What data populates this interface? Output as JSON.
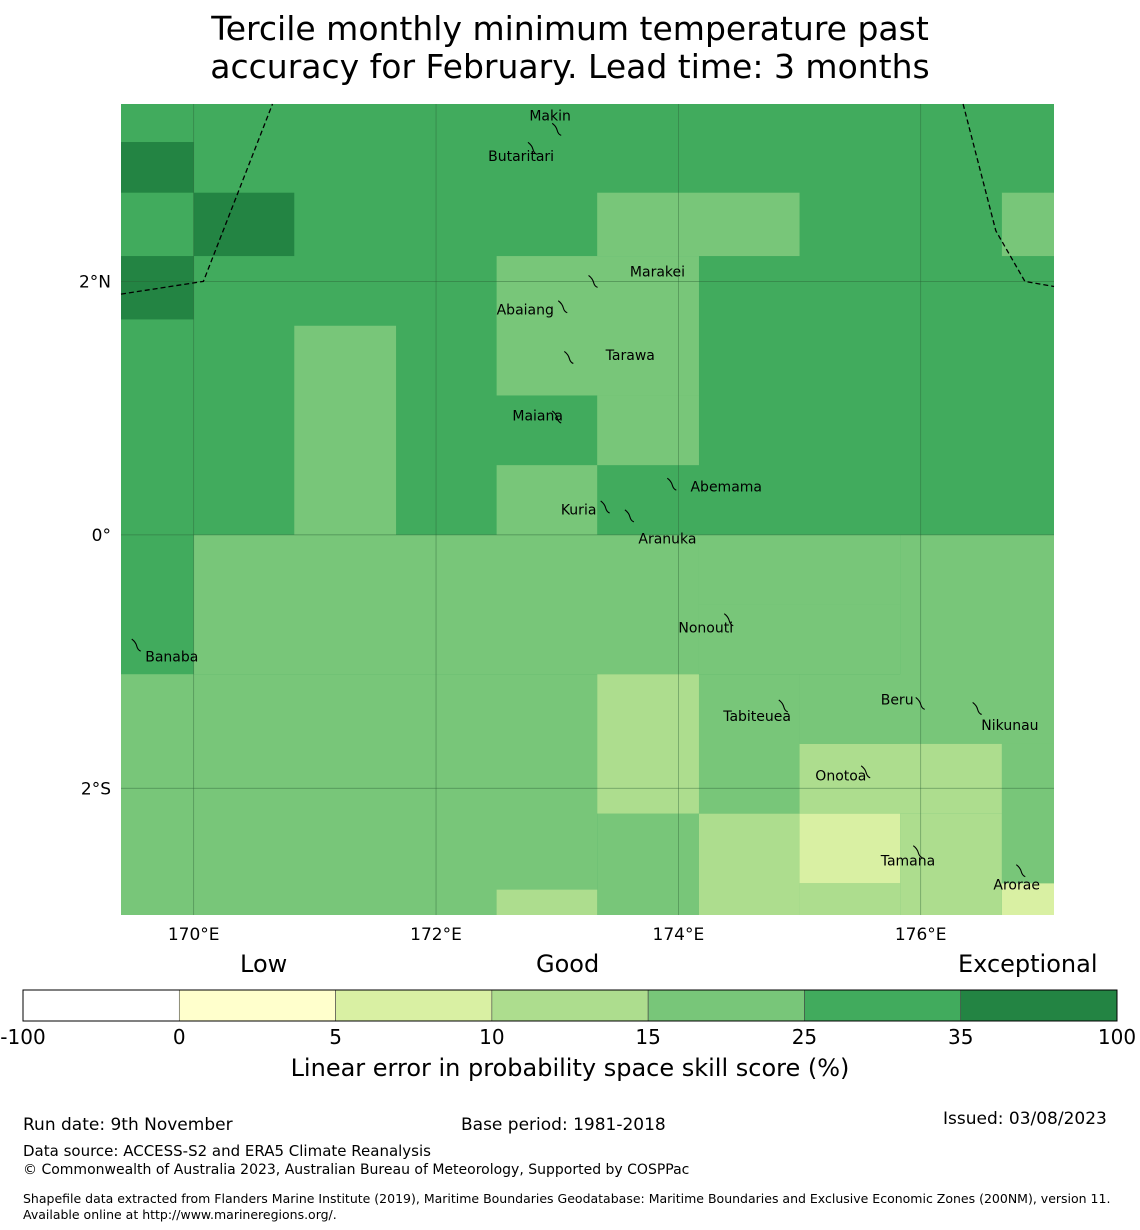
{
  "title": {
    "line1": "Tercile monthly minimum temperature past",
    "line2": "accuracy for February. Lead time: 3 months"
  },
  "map": {
    "lon_range": [
      169.4,
      177.1
    ],
    "lat_range": [
      -3.0,
      3.4
    ],
    "lon_ticks": [
      {
        "value": 170,
        "label": "170°E"
      },
      {
        "value": 172,
        "label": "172°E"
      },
      {
        "value": 174,
        "label": "174°E"
      },
      {
        "value": 176,
        "label": "176°E"
      }
    ],
    "lat_ticks": [
      {
        "value": 2,
        "label": "2°N"
      },
      {
        "value": 0,
        "label": "0°"
      },
      {
        "value": -2,
        "label": "2°S"
      }
    ],
    "colors": {
      "c15_25": "#78c679",
      "c25_35": "#41ab5d",
      "c35_100": "#238443",
      "c10_15": "#addd8e",
      "c5_10": "#d9f0a3",
      "c0_5": "#ffffcc"
    },
    "background_class": "c25_35",
    "cells": [
      {
        "lon": [
          169.4,
          170.0
        ],
        "lat": [
          2.7,
          3.1
        ],
        "cls": "c35_100"
      },
      {
        "lon": [
          170.0,
          170.83
        ],
        "lat": [
          2.2,
          2.7
        ],
        "cls": "c35_100"
      },
      {
        "lon": [
          169.4,
          170.0
        ],
        "lat": [
          1.7,
          2.2
        ],
        "cls": "c35_100"
      },
      {
        "lon": [
          173.33,
          175.0
        ],
        "lat": [
          2.2,
          2.7
        ],
        "cls": "c15_25"
      },
      {
        "lon": [
          176.67,
          177.1
        ],
        "lat": [
          2.2,
          2.7
        ],
        "cls": "c15_25"
      },
      {
        "lon": [
          172.5,
          174.17
        ],
        "lat": [
          1.1,
          2.2
        ],
        "cls": "c15_25"
      },
      {
        "lon": [
          173.33,
          174.17
        ],
        "lat": [
          0.55,
          1.1
        ],
        "cls": "c15_25"
      },
      {
        "lon": [
          170.83,
          171.67
        ],
        "lat": [
          0.0,
          1.65
        ],
        "cls": "c15_25"
      },
      {
        "lon": [
          172.5,
          173.33
        ],
        "lat": [
          0.0,
          0.55
        ],
        "cls": "c15_25"
      },
      {
        "lon": [
          170.0,
          174.17
        ],
        "lat": [
          -1.1,
          0.0
        ],
        "cls": "c15_25"
      },
      {
        "lon": [
          174.17,
          175.83
        ],
        "lat": [
          -0.55,
          0.0
        ],
        "cls": "c15_25"
      },
      {
        "lon": [
          175.83,
          177.1
        ],
        "lat": [
          -1.65,
          0.0
        ],
        "cls": "c15_25"
      },
      {
        "lon": [
          174.17,
          175.83
        ],
        "lat": [
          -1.1,
          -0.55
        ],
        "cls": "c15_25"
      },
      {
        "lon": [
          169.4,
          173.33
        ],
        "lat": [
          -3.0,
          -1.1
        ],
        "cls": "c15_25"
      },
      {
        "lon": [
          173.33,
          174.17
        ],
        "lat": [
          -3.0,
          -2.2
        ],
        "cls": "c15_25"
      },
      {
        "lon": [
          174.17,
          175.0
        ],
        "lat": [
          -2.2,
          -1.1
        ],
        "cls": "c15_25"
      },
      {
        "lon": [
          175.0,
          177.1
        ],
        "lat": [
          -1.65,
          -1.1
        ],
        "cls": "c15_25"
      },
      {
        "lon": [
          176.67,
          177.1
        ],
        "lat": [
          -2.75,
          -1.65
        ],
        "cls": "c15_25"
      },
      {
        "lon": [
          173.33,
          174.17
        ],
        "lat": [
          -2.2,
          -1.1
        ],
        "cls": "c10_15"
      },
      {
        "lon": [
          175.0,
          176.67
        ],
        "lat": [
          -2.2,
          -1.65
        ],
        "cls": "c10_15"
      },
      {
        "lon": [
          174.17,
          175.0
        ],
        "lat": [
          -3.0,
          -2.2
        ],
        "cls": "c10_15"
      },
      {
        "lon": [
          175.83,
          176.67
        ],
        "lat": [
          -3.0,
          -2.2
        ],
        "cls": "c10_15"
      },
      {
        "lon": [
          175.0,
          175.83
        ],
        "lat": [
          -3.0,
          -2.75
        ],
        "cls": "c10_15"
      },
      {
        "lon": [
          172.5,
          173.33
        ],
        "lat": [
          -3.0,
          -2.8
        ],
        "cls": "c10_15"
      },
      {
        "lon": [
          175.0,
          175.83
        ],
        "lat": [
          -2.75,
          -2.2
        ],
        "cls": "c5_10"
      },
      {
        "lon": [
          176.67,
          177.1
        ],
        "lat": [
          -3.0,
          -2.75
        ],
        "cls": "c5_10"
      }
    ],
    "boundaries": [
      [
        [
          169.4,
          1.9
        ],
        [
          170.08,
          2.0
        ],
        [
          170.65,
          3.4
        ]
      ],
      [
        [
          176.35,
          3.4
        ],
        [
          176.62,
          2.4
        ],
        [
          176.86,
          2.0
        ],
        [
          177.1,
          1.96
        ]
      ]
    ],
    "islands": [
      {
        "name": "Makin",
        "lon": 173.0,
        "lat": 3.2,
        "label_lon": 172.77,
        "label_lat": 3.31
      },
      {
        "name": "Butaritari",
        "lon": 172.8,
        "lat": 3.05,
        "label_lon": 172.43,
        "label_lat": 2.99
      },
      {
        "name": "Marakei",
        "lon": 173.3,
        "lat": 2.0,
        "label_lon": 173.6,
        "label_lat": 2.08
      },
      {
        "name": "Abaiang",
        "lon": 173.05,
        "lat": 1.8,
        "label_lon": 172.5,
        "label_lat": 1.78
      },
      {
        "name": "Tarawa",
        "lon": 173.1,
        "lat": 1.4,
        "label_lon": 173.4,
        "label_lat": 1.42
      },
      {
        "name": "Maiana",
        "lon": 173.0,
        "lat": 0.93,
        "label_lon": 172.63,
        "label_lat": 0.94
      },
      {
        "name": "Abemama",
        "lon": 173.95,
        "lat": 0.4,
        "label_lon": 174.1,
        "label_lat": 0.38
      },
      {
        "name": "Kuria",
        "lon": 173.4,
        "lat": 0.22,
        "label_lon": 173.03,
        "label_lat": 0.2
      },
      {
        "name": "Aranuka",
        "lon": 173.6,
        "lat": 0.15,
        "label_lon": 173.67,
        "label_lat": -0.03
      },
      {
        "name": "Banaba",
        "lon": 169.53,
        "lat": -0.87,
        "label_lon": 169.6,
        "label_lat": -0.96
      },
      {
        "name": "Nonouti",
        "lon": 174.42,
        "lat": -0.67,
        "label_lon": 174.0,
        "label_lat": -0.73
      },
      {
        "name": "Tabiteuea",
        "lon": 174.87,
        "lat": -1.35,
        "label_lon": 174.37,
        "label_lat": -1.43
      },
      {
        "name": "Beru",
        "lon": 176.0,
        "lat": -1.33,
        "label_lon": 175.67,
        "label_lat": -1.3
      },
      {
        "name": "Nikunau",
        "lon": 176.47,
        "lat": -1.37,
        "label_lon": 176.5,
        "label_lat": -1.5
      },
      {
        "name": "Onotoa",
        "lon": 175.55,
        "lat": -1.87,
        "label_lon": 175.13,
        "label_lat": -1.9
      },
      {
        "name": "Tamana",
        "lon": 175.98,
        "lat": -2.5,
        "label_lon": 175.67,
        "label_lat": -2.57
      },
      {
        "name": "Arorae",
        "lon": 176.83,
        "lat": -2.65,
        "label_lon": 176.6,
        "label_lat": -2.76
      }
    ]
  },
  "colorbar": {
    "category_labels": {
      "low": "Low",
      "good": "Good",
      "exceptional": "Exceptional"
    },
    "ticks": [
      "-100",
      "0",
      "5",
      "10",
      "15",
      "25",
      "35",
      "100"
    ],
    "segments": [
      {
        "range": "-100 to 0",
        "color": "#ffffff"
      },
      {
        "range": "0 to 5",
        "color": "#ffffcc"
      },
      {
        "range": "5 to 10",
        "color": "#d9f0a3"
      },
      {
        "range": "10 to 15",
        "color": "#addd8e"
      },
      {
        "range": "15 to 25",
        "color": "#78c679"
      },
      {
        "range": "25 to 35",
        "color": "#41ab5d"
      },
      {
        "range": "35 to 100",
        "color": "#238443"
      }
    ],
    "title": "Linear error in probability space skill score (%)"
  },
  "footer": {
    "run_date": "Run date: 9th November",
    "base_period": "Base period: 1981-2018",
    "issued": "Issued: 03/08/2023",
    "data_source": "Data source: ACCESS-S2 and ERA5 Climate Reanalysis",
    "copyright": "© Commonwealth of Australia 2023, Australian Bureau of Meteorology, Supported by COSPPac",
    "shapefile": "Shapefile data extracted from Flanders Marine Institute (2019), Maritime Boundaries Geodatabase: Maritime Boundaries and Exclusive Economic Zones (200NM), version 11. Available online at http://www.marineregions.org/."
  }
}
